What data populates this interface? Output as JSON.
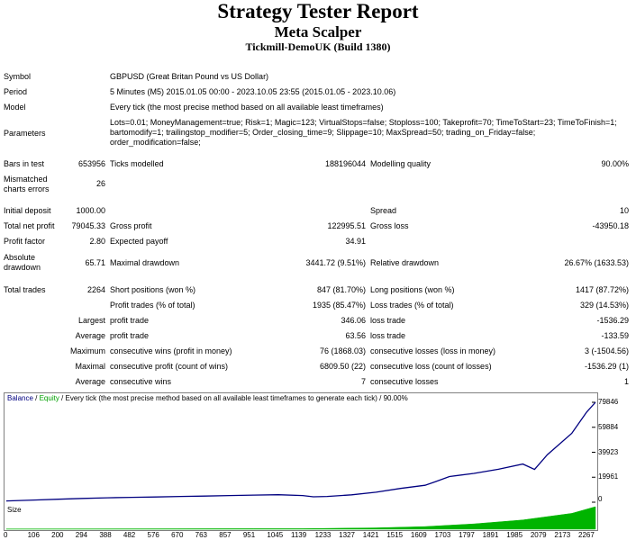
{
  "header": {
    "title": "Strategy Tester Report",
    "expert": "Meta Scalper",
    "server": "Tickmill-DemoUK (Build 1380)"
  },
  "info": {
    "symbol_label": "Symbol",
    "symbol_value": "GBPUSD (Great Britan Pound vs US Dollar)",
    "period_label": "Period",
    "period_value": "5 Minutes (M5) 2015.01.05 00:00 - 2023.10.05 23:55 (2015.01.05 - 2023.10.06)",
    "model_label": "Model",
    "model_value": "Every tick (the most precise method based on all available least timeframes)",
    "parameters_label": "Parameters",
    "parameters_value": "Lots=0.01; MoneyManagement=true; Risk=1; Magic=123; VirtualStops=false; Stoploss=100; Takeprofit=70; TimeToStart=23; TimeToFinish=1; bartomodify=1; trailingstop_modifier=5; Order_closing_time=9; Slippage=10; MaxSpread=50; trading_on_Friday=false; order_modification=false;"
  },
  "stats": {
    "bars_label": "Bars in test",
    "bars_value": "653956",
    "ticks_label": "Ticks modelled",
    "ticks_value": "188196044",
    "quality_label": "Modelling quality",
    "quality_value": "90.00%",
    "mismatched_label": "Mismatched charts errors",
    "mismatched_value": "26",
    "initial_deposit_label": "Initial deposit",
    "initial_deposit_value": "1000.00",
    "spread_label": "Spread",
    "spread_value": "10",
    "net_profit_label": "Total net profit",
    "net_profit_value": "79045.33",
    "gross_profit_label": "Gross profit",
    "gross_profit_value": "122995.51",
    "gross_loss_label": "Gross loss",
    "gross_loss_value": "-43950.18",
    "profit_factor_label": "Profit factor",
    "profit_factor_value": "2.80",
    "expected_payoff_label": "Expected payoff",
    "expected_payoff_value": "34.91",
    "abs_drawdown_label": "Absolute drawdown",
    "abs_drawdown_value": "65.71",
    "max_drawdown_label": "Maximal drawdown",
    "max_drawdown_value": "3441.72 (9.51%)",
    "rel_drawdown_label": "Relative drawdown",
    "rel_drawdown_value": "26.67% (1633.53)",
    "total_trades_label": "Total trades",
    "total_trades_value": "2264",
    "short_label": "Short positions (won %)",
    "short_value": "847 (81.70%)",
    "long_label": "Long positions (won %)",
    "long_value": "1417 (87.72%)",
    "profit_trades_label": "Profit trades (% of total)",
    "profit_trades_value": "1935 (85.47%)",
    "loss_trades_label": "Loss trades (% of total)",
    "loss_trades_value": "329 (14.53%)",
    "largest_label": "Largest",
    "largest_profit_label": "profit trade",
    "largest_profit_value": "346.06",
    "largest_loss_label": "loss trade",
    "largest_loss_value": "-1536.29",
    "average_label": "Average",
    "average_profit_label": "profit trade",
    "average_profit_value": "63.56",
    "average_loss_label": "loss trade",
    "average_loss_value": "-133.59",
    "maximum_label": "Maximum",
    "max_cons_wins_label": "consecutive wins (profit in money)",
    "max_cons_wins_value": "76 (1868.03)",
    "max_cons_losses_label": "consecutive losses (loss in money)",
    "max_cons_losses_value": "3 (-1504.56)",
    "maximal_label": "Maximal",
    "maximal_cons_profit_label": "consecutive profit (count of wins)",
    "maximal_cons_profit_value": "6809.50 (22)",
    "maximal_cons_loss_label": "consecutive loss (count of losses)",
    "maximal_cons_loss_value": "-1536.29 (1)",
    "avg_label": "Average",
    "avg_cons_wins_label": "consecutive wins",
    "avg_cons_wins_value": "7",
    "avg_cons_losses_label": "consecutive losses",
    "avg_cons_losses_value": "1"
  },
  "chart_data": {
    "type": "line",
    "legend": {
      "balance": "Balance",
      "sep1": " / ",
      "equity": "Equity",
      "sep2": " / ",
      "desc": "Every tick (the most precise method based on all available least timeframes to generate each tick)",
      "sep3": " / ",
      "quality": "90.00%"
    },
    "y_ticks": [
      "79846",
      "59884",
      "39923",
      "19961",
      "0"
    ],
    "y_tick_values": [
      79846,
      59884,
      39923,
      19961,
      0
    ],
    "x_ticks": [
      "0",
      "106",
      "200",
      "294",
      "388",
      "482",
      "576",
      "670",
      "763",
      "857",
      "951",
      "1045",
      "1139",
      "1233",
      "1327",
      "1421",
      "1515",
      "1609",
      "1703",
      "1797",
      "1891",
      "1985",
      "2079",
      "2173",
      "2267"
    ],
    "ylim": [
      0,
      79846
    ],
    "xlim": [
      0,
      2264
    ],
    "series": [
      {
        "name": "Balance",
        "color": "#000080",
        "x": [
          0,
          106,
          200,
          294,
          388,
          482,
          576,
          670,
          763,
          857,
          951,
          1045,
          1139,
          1180,
          1233,
          1327,
          1421,
          1515,
          1609,
          1650,
          1703,
          1797,
          1891,
          1985,
          2030,
          2079,
          2173,
          2230,
          2264
        ],
        "y": [
          1000,
          1700,
          2400,
          3000,
          3500,
          3900,
          4200,
          4600,
          4900,
          5300,
          5700,
          6000,
          5300,
          4300,
          4600,
          5900,
          8000,
          11000,
          13500,
          16500,
          20500,
          23000,
          26300,
          30500,
          26200,
          38000,
          55000,
          72000,
          79846
        ]
      }
    ],
    "size_label": "Size",
    "size_color": "#00b400",
    "size_series": {
      "x": [
        0,
        951,
        1139,
        1421,
        1609,
        1797,
        1985,
        2173,
        2264
      ],
      "y": [
        0.01,
        0.02,
        0.02,
        0.05,
        0.1,
        0.2,
        0.35,
        0.6,
        0.85
      ]
    }
  }
}
